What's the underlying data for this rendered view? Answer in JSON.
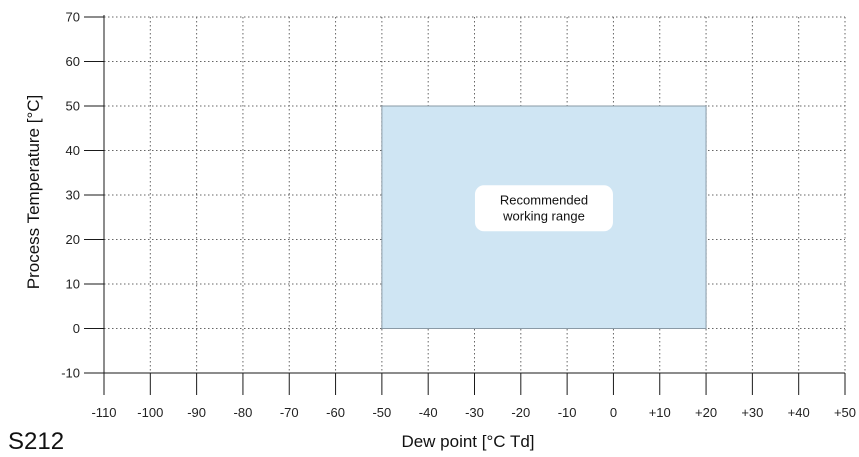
{
  "figure_id": "S212",
  "chart_data": {
    "type": "area",
    "xlabel": "Dew point [°C Td]",
    "ylabel": "Process Temperature [°C]",
    "xlim": [
      -110,
      50
    ],
    "ylim": [
      -10,
      70
    ],
    "x_ticks": [
      -110,
      -100,
      -90,
      -80,
      -70,
      -60,
      -50,
      -40,
      -30,
      -20,
      -10,
      0,
      10,
      20,
      30,
      40,
      50
    ],
    "x_tick_labels": [
      "-110",
      "-100",
      "-90",
      "-80",
      "-70",
      "-60",
      "-50",
      "-40",
      "-30",
      "-20",
      "-10",
      "0",
      "+10",
      "+20",
      "+30",
      "+40",
      "+50"
    ],
    "y_ticks": [
      -10,
      0,
      10,
      20,
      30,
      40,
      50,
      60,
      70
    ],
    "y_tick_labels": [
      "-10",
      "0",
      "10",
      "20",
      "30",
      "40",
      "50",
      "60",
      "70"
    ],
    "grid": true,
    "regions": [
      {
        "label_lines": [
          "Recommended",
          "working range"
        ],
        "x_range": [
          -50,
          20
        ],
        "y_range": [
          0,
          50
        ],
        "fill": "#cfe5f3",
        "stroke": "#8a9aa6"
      }
    ]
  },
  "colors": {
    "axis": "#1a1a1a",
    "grid": "#666666",
    "region_fill": "#cfe5f3",
    "label_box": "#ffffff"
  }
}
